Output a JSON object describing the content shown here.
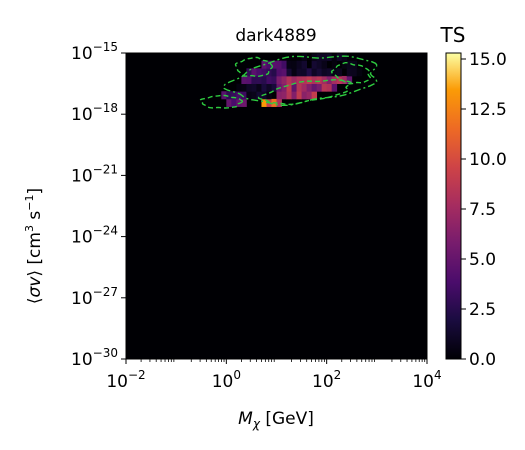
{
  "chart_data": {
    "type": "heatmap",
    "title": "dark4889",
    "xlabel": "M_χ [GeV]",
    "ylabel": "⟨σv⟩ [cm³ s⁻¹]",
    "x_scale": "log",
    "y_scale": "log",
    "xlim": [
      0.01,
      10000
    ],
    "ylim": [
      1e-30,
      1e-15
    ],
    "x_ticks": [
      {
        "label": "10",
        "exp": "−2"
      },
      {
        "label": "10",
        "exp": "0"
      },
      {
        "label": "10",
        "exp": "2"
      },
      {
        "label": "10",
        "exp": "4"
      }
    ],
    "y_ticks": [
      {
        "label": "10",
        "exp": "−30"
      },
      {
        "label": "10",
        "exp": "−27"
      },
      {
        "label": "10",
        "exp": "−24"
      },
      {
        "label": "10",
        "exp": "−21"
      },
      {
        "label": "10",
        "exp": "−18"
      },
      {
        "label": "10",
        "exp": "−15"
      }
    ],
    "colorbar": {
      "label": "TS",
      "colormap": "inferno",
      "range": [
        0,
        15.3
      ],
      "ticks": [
        "0.0",
        "2.5",
        "5.0",
        "7.5",
        "10.0",
        "12.5",
        "15.0"
      ]
    },
    "best_fit_marker": {
      "mass_gev": 35,
      "sigma_v": 3e-18
    },
    "region_ts_values": [
      {
        "log10_mass": [
          0.7,
          2.0
        ],
        "log10_sigma_v": [
          -17.8,
          -17.1
        ],
        "ts": 12
      },
      {
        "log10_mass": [
          1.0,
          2.8
        ],
        "log10_sigma_v": [
          -17.5,
          -16.2
        ],
        "ts": 8
      },
      {
        "log10_mass": [
          -0.7,
          0.4
        ],
        "log10_sigma_v": [
          -17.9,
          -16.8
        ],
        "ts": 5
      },
      {
        "log10_mass": [
          0.3,
          1.2
        ],
        "log10_sigma_v": [
          -16.5,
          -15.0
        ],
        "ts": 4
      }
    ],
    "contour_styles": [
      "dashed",
      "dash-dot"
    ],
    "contour_color": "#2ecc40"
  }
}
